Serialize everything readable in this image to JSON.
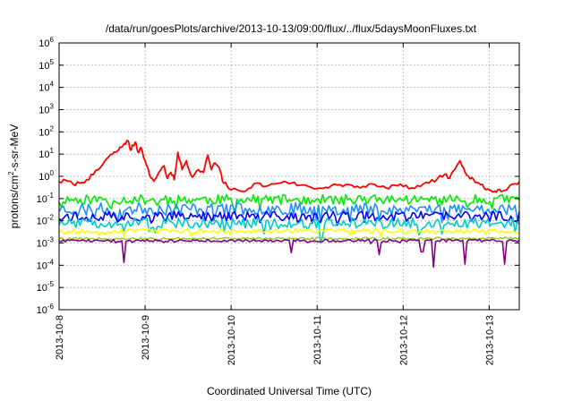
{
  "chart_data": {
    "type": "line",
    "title": "/data/run/goesPlots/archive/2013-10-13/09:00/flux/../flux/5daysMoonFluxes.txt",
    "xlabel": "Coordinated Universal Time (UTC)",
    "ylabel": "protons/cm²-s-sr-MeV",
    "ylabel_parts": {
      "pre": "protons/cm",
      "sup": "2",
      "post": "-s-sr-MeV"
    },
    "yscale": "log",
    "ylim_exponents": [
      -6,
      6
    ],
    "yticks": [
      {
        "base": "10",
        "exp": "-6"
      },
      {
        "base": "10",
        "exp": "-5"
      },
      {
        "base": "10",
        "exp": "-4"
      },
      {
        "base": "10",
        "exp": "-3"
      },
      {
        "base": "10",
        "exp": "-2"
      },
      {
        "base": "10",
        "exp": "-1"
      },
      {
        "base": "10",
        "exp": "0"
      },
      {
        "base": "10",
        "exp": "1"
      },
      {
        "base": "10",
        "exp": "2"
      },
      {
        "base": "10",
        "exp": "3"
      },
      {
        "base": "10",
        "exp": "4"
      },
      {
        "base": "10",
        "exp": "5"
      },
      {
        "base": "10",
        "exp": "6"
      }
    ],
    "xlim_days": [
      0,
      5.35
    ],
    "xticks": [
      {
        "label": "2013-10-8",
        "day": 0
      },
      {
        "label": "2013-10-9",
        "day": 1
      },
      {
        "label": "2013-10-10",
        "day": 2
      },
      {
        "label": "2013-10-11",
        "day": 3
      },
      {
        "label": "2013-10-12",
        "day": 4
      },
      {
        "label": "2013-10-13",
        "day": 5
      }
    ],
    "grid": true,
    "series": [
      {
        "color": "#ff0000",
        "kind": "anchors",
        "points": [
          [
            0.0,
            0.55
          ],
          [
            0.08,
            0.65
          ],
          [
            0.16,
            0.45
          ],
          [
            0.24,
            0.5
          ],
          [
            0.32,
            0.7
          ],
          [
            0.4,
            1.2
          ],
          [
            0.48,
            2.5
          ],
          [
            0.55,
            6
          ],
          [
            0.62,
            10
          ],
          [
            0.68,
            14
          ],
          [
            0.72,
            20
          ],
          [
            0.76,
            30
          ],
          [
            0.8,
            40
          ],
          [
            0.83,
            15
          ],
          [
            0.86,
            25
          ],
          [
            0.89,
            35
          ],
          [
            0.92,
            12
          ],
          [
            0.95,
            20
          ],
          [
            1.0,
            5
          ],
          [
            1.05,
            1.2
          ],
          [
            1.1,
            0.6
          ],
          [
            1.16,
            1.5
          ],
          [
            1.22,
            3
          ],
          [
            1.26,
            0.8
          ],
          [
            1.3,
            1.5
          ],
          [
            1.34,
            0.7
          ],
          [
            1.38,
            12
          ],
          [
            1.43,
            2
          ],
          [
            1.48,
            5
          ],
          [
            1.52,
            1.5
          ],
          [
            1.56,
            1
          ],
          [
            1.62,
            2
          ],
          [
            1.68,
            1.5
          ],
          [
            1.73,
            9
          ],
          [
            1.77,
            2
          ],
          [
            1.81,
            4
          ],
          [
            1.86,
            2.5
          ],
          [
            1.9,
            0.6
          ],
          [
            1.95,
            0.4
          ],
          [
            2.0,
            0.25
          ],
          [
            2.1,
            0.22
          ],
          [
            2.2,
            0.28
          ],
          [
            2.3,
            0.5
          ],
          [
            2.4,
            0.35
          ],
          [
            2.5,
            0.45
          ],
          [
            2.62,
            0.6
          ],
          [
            2.7,
            0.5
          ],
          [
            2.8,
            0.4
          ],
          [
            2.9,
            0.35
          ],
          [
            3.0,
            0.28
          ],
          [
            3.1,
            0.32
          ],
          [
            3.2,
            0.45
          ],
          [
            3.3,
            0.35
          ],
          [
            3.4,
            0.4
          ],
          [
            3.5,
            0.3
          ],
          [
            3.6,
            0.45
          ],
          [
            3.7,
            0.35
          ],
          [
            3.8,
            0.3
          ],
          [
            3.9,
            0.4
          ],
          [
            4.0,
            0.35
          ],
          [
            4.1,
            0.3
          ],
          [
            4.2,
            0.35
          ],
          [
            4.3,
            0.5
          ],
          [
            4.4,
            0.8
          ],
          [
            4.48,
            1.2
          ],
          [
            4.54,
            0.8
          ],
          [
            4.6,
            2
          ],
          [
            4.66,
            5
          ],
          [
            4.7,
            2.5
          ],
          [
            4.76,
            1
          ],
          [
            4.82,
            0.7
          ],
          [
            4.88,
            0.5
          ],
          [
            4.94,
            0.3
          ],
          [
            5.0,
            0.25
          ],
          [
            5.05,
            0.2
          ],
          [
            5.1,
            0.25
          ],
          [
            5.16,
            0.22
          ],
          [
            5.22,
            0.3
          ],
          [
            5.28,
            0.45
          ],
          [
            5.35,
            0.55
          ]
        ]
      },
      {
        "color": "#00ee00",
        "kind": "noisy",
        "base": 0.09,
        "amp": 0.45,
        "seed": 11,
        "dips": []
      },
      {
        "color": "#1e90ff",
        "kind": "noisy",
        "base": 0.035,
        "amp": 0.55,
        "seed": 23,
        "dips": []
      },
      {
        "color": "#0000ff",
        "kind": "noisy",
        "base": 0.016,
        "amp": 0.45,
        "seed": 37,
        "dips": []
      },
      {
        "color": "#00cccc",
        "kind": "noisy",
        "base": 0.008,
        "amp": 0.45,
        "seed": 51,
        "dips": [
          [
            3.05,
            0.35
          ],
          [
            4.2,
            0.25
          ]
        ]
      },
      {
        "color": "#ffff00",
        "kind": "noisy",
        "base": 0.0035,
        "amp": 0.2,
        "seed": 67,
        "dips": []
      },
      {
        "color": "#9acd32",
        "kind": "noisy",
        "base": 0.0016,
        "amp": 0.1,
        "seed": 79,
        "dips": []
      },
      {
        "color": "#800080",
        "kind": "noisy",
        "base": 0.0013,
        "amp": 0.12,
        "seed": 91,
        "dips": [
          [
            0.75,
            0.5
          ],
          [
            2.7,
            0.25
          ],
          [
            3.72,
            0.3
          ],
          [
            4.22,
            0.28
          ],
          [
            4.35,
            0.6
          ],
          [
            4.72,
            0.55
          ],
          [
            5.18,
            0.5
          ]
        ]
      }
    ]
  }
}
